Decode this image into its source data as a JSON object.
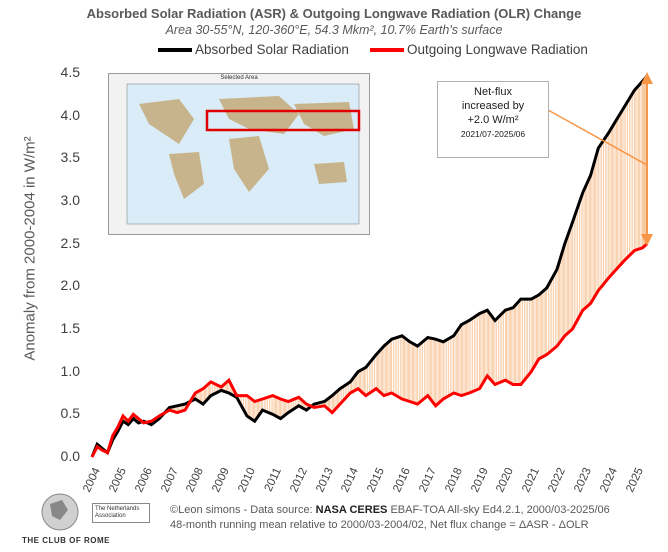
{
  "chart_data": {
    "type": "line",
    "title": "Absorbed Solar Radiation (ASR) & Outgoing Longwave Radiation (OLR) Change",
    "subtitle": "Area 30-55°N, 120-360°E, 54.3 Mkm², 10.7% Earth's surface",
    "ylabel": "Anomaly from 2000-2004 in W/m²",
    "xlabel": "",
    "ylim": [
      0.0,
      4.5
    ],
    "xlim": [
      2004,
      2025.6
    ],
    "yticks": [
      "0.0",
      "0.5",
      "1.0",
      "1.5",
      "2.0",
      "2.5",
      "3.0",
      "3.5",
      "4.0",
      "4.5"
    ],
    "xticks": [
      "2004",
      "2005",
      "2006",
      "2007",
      "2008",
      "2009",
      "2010",
      "2011",
      "2012",
      "2013",
      "2014",
      "2015",
      "2016",
      "2017",
      "2018",
      "2019",
      "2020",
      "2021",
      "2022",
      "2023",
      "2024",
      "2025"
    ],
    "legend_position": "top",
    "grid": false,
    "series": [
      {
        "name": "Absorbed Solar Radiation",
        "color": "#000000",
        "x": [
          2004.0,
          2004.2,
          2004.4,
          2004.6,
          2004.8,
          2005.0,
          2005.2,
          2005.4,
          2005.6,
          2005.8,
          2006.0,
          2006.3,
          2006.6,
          2007.0,
          2007.3,
          2007.6,
          2008.0,
          2008.3,
          2008.6,
          2009.0,
          2009.3,
          2009.6,
          2010.0,
          2010.3,
          2010.6,
          2011.0,
          2011.3,
          2011.6,
          2012.0,
          2012.3,
          2012.6,
          2013.0,
          2013.3,
          2013.6,
          2014.0,
          2014.3,
          2014.6,
          2015.0,
          2015.3,
          2015.6,
          2016.0,
          2016.3,
          2016.6,
          2017.0,
          2017.3,
          2017.6,
          2018.0,
          2018.3,
          2018.6,
          2019.0,
          2019.3,
          2019.6,
          2020.0,
          2020.3,
          2020.6,
          2021.0,
          2021.3,
          2021.6,
          2022.0,
          2022.3,
          2022.6,
          2023.0,
          2023.3,
          2023.6,
          2024.0,
          2024.3,
          2024.6,
          2025.0,
          2025.3,
          2025.5
        ],
        "values": [
          0.0,
          0.15,
          0.1,
          0.05,
          0.2,
          0.3,
          0.42,
          0.38,
          0.45,
          0.4,
          0.42,
          0.38,
          0.45,
          0.58,
          0.6,
          0.62,
          0.68,
          0.62,
          0.72,
          0.78,
          0.75,
          0.7,
          0.48,
          0.42,
          0.55,
          0.5,
          0.45,
          0.52,
          0.6,
          0.55,
          0.62,
          0.65,
          0.72,
          0.8,
          0.88,
          1.0,
          1.05,
          1.2,
          1.3,
          1.38,
          1.42,
          1.35,
          1.3,
          1.4,
          1.38,
          1.35,
          1.42,
          1.55,
          1.6,
          1.68,
          1.72,
          1.6,
          1.72,
          1.75,
          1.85,
          1.85,
          1.9,
          1.98,
          2.2,
          2.5,
          2.75,
          3.1,
          3.3,
          3.62,
          3.8,
          3.95,
          4.1,
          4.3,
          4.4,
          4.47
        ]
      },
      {
        "name": "Outgoing Longwave Radiation",
        "color": "#ff0000",
        "x": [
          2004.0,
          2004.2,
          2004.4,
          2004.6,
          2004.8,
          2005.0,
          2005.2,
          2005.4,
          2005.6,
          2005.8,
          2006.0,
          2006.3,
          2006.6,
          2007.0,
          2007.3,
          2007.6,
          2008.0,
          2008.3,
          2008.6,
          2009.0,
          2009.3,
          2009.6,
          2010.0,
          2010.3,
          2010.6,
          2011.0,
          2011.3,
          2011.6,
          2012.0,
          2012.3,
          2012.6,
          2013.0,
          2013.3,
          2013.6,
          2014.0,
          2014.3,
          2014.6,
          2015.0,
          2015.3,
          2015.6,
          2016.0,
          2016.3,
          2016.6,
          2017.0,
          2017.3,
          2017.6,
          2018.0,
          2018.3,
          2018.6,
          2019.0,
          2019.3,
          2019.6,
          2020.0,
          2020.3,
          2020.6,
          2021.0,
          2021.3,
          2021.6,
          2022.0,
          2022.3,
          2022.6,
          2023.0,
          2023.3,
          2023.6,
          2024.0,
          2024.3,
          2024.6,
          2025.0,
          2025.3,
          2025.5
        ],
        "values": [
          0.0,
          0.12,
          0.08,
          0.05,
          0.25,
          0.35,
          0.48,
          0.42,
          0.5,
          0.45,
          0.4,
          0.42,
          0.48,
          0.55,
          0.52,
          0.55,
          0.75,
          0.8,
          0.88,
          0.82,
          0.9,
          0.72,
          0.72,
          0.65,
          0.68,
          0.72,
          0.68,
          0.65,
          0.7,
          0.62,
          0.58,
          0.6,
          0.52,
          0.62,
          0.75,
          0.8,
          0.72,
          0.8,
          0.72,
          0.75,
          0.68,
          0.65,
          0.62,
          0.72,
          0.6,
          0.68,
          0.75,
          0.72,
          0.75,
          0.8,
          0.95,
          0.85,
          0.9,
          0.85,
          0.85,
          1.0,
          1.15,
          1.2,
          1.3,
          1.42,
          1.5,
          1.72,
          1.8,
          1.95,
          2.1,
          2.2,
          2.3,
          2.42,
          2.45,
          2.5
        ]
      }
    ],
    "annotations": [
      {
        "lines": [
          "Net-flux",
          "increased by",
          "+2.0 W/m²",
          "2021/07-2025/06"
        ]
      }
    ],
    "fill_between_color": "#f4a460"
  },
  "inset": {
    "title": "Selected Area"
  },
  "footer": {
    "line1_pre": "©Leon simons - Data source: ",
    "line1_bold": "NASA CERES",
    "line1_post": " EBAF-TOA All-sky Ed4.2.1, 2000/03-2025/06",
    "line2": "48-month running mean relative to 2000/03-2004/02, Net flux change = ΔASR - ΔOLR"
  },
  "logo": {
    "name": "THE CLUB OF ROME",
    "assoc": "The Netherlands Association"
  }
}
